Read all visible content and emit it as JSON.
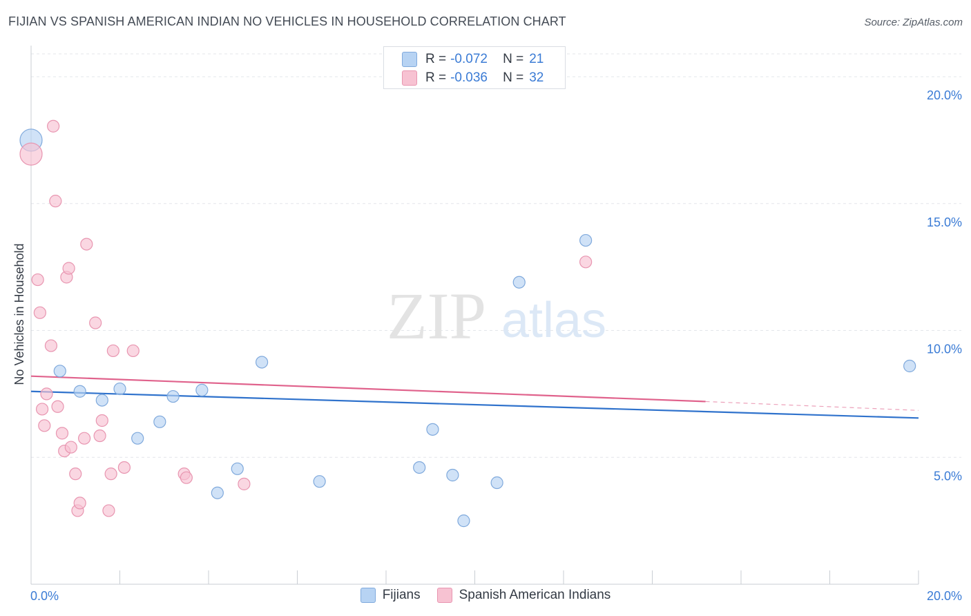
{
  "header": {
    "title": "FIJIAN VS SPANISH AMERICAN INDIAN NO VEHICLES IN HOUSEHOLD CORRELATION CHART",
    "source": "Source: ZipAtlas.com"
  },
  "watermark": {
    "zip": "ZIP",
    "atlas": "atlas"
  },
  "stats_legend": {
    "rows": [
      {
        "series": "Fijians",
        "r_label": "R =",
        "r_value": "-0.072",
        "n_label": "N =",
        "n_value": "21"
      },
      {
        "series": "Spanish American Indians",
        "r_label": "R =",
        "r_value": "-0.036",
        "n_label": "N =",
        "n_value": "32"
      }
    ]
  },
  "colors": {
    "fijians_fill": "#b7d3f3",
    "fijians_stroke": "#7fa9dc",
    "fijians_line": "#2f72cc",
    "sai_fill": "#f7c2d2",
    "sai_stroke": "#e895b0",
    "sai_line": "#e0628c",
    "axis_text": "#3a7bd5",
    "grid": "#e3e6ea"
  },
  "chart_data": {
    "type": "scatter",
    "title": "FIJIAN VS SPANISH AMERICAN INDIAN NO VEHICLES IN HOUSEHOLD CORRELATION CHART",
    "xlabel": "",
    "ylabel": "No Vehicles in Household",
    "xlim": [
      0,
      20
    ],
    "ylim": [
      0,
      20.9
    ],
    "x_tick_labels": [
      "0.0%",
      "20.0%"
    ],
    "y_ticks": [
      5,
      10,
      15,
      20
    ],
    "y_tick_labels": [
      "5.0%",
      "10.0%",
      "15.0%",
      "20.0%"
    ],
    "series": [
      {
        "name": "Fijians",
        "points": [
          {
            "x": 0.0,
            "y": 17.5,
            "big": true
          },
          {
            "x": 0.65,
            "y": 8.4
          },
          {
            "x": 1.1,
            "y": 7.6
          },
          {
            "x": 1.6,
            "y": 7.25
          },
          {
            "x": 2.0,
            "y": 7.7
          },
          {
            "x": 2.4,
            "y": 5.75
          },
          {
            "x": 2.9,
            "y": 6.4
          },
          {
            "x": 3.2,
            "y": 7.4
          },
          {
            "x": 3.85,
            "y": 7.65
          },
          {
            "x": 4.2,
            "y": 3.6
          },
          {
            "x": 4.65,
            "y": 4.55
          },
          {
            "x": 5.2,
            "y": 8.75
          },
          {
            "x": 6.5,
            "y": 4.05
          },
          {
            "x": 8.75,
            "y": 4.6
          },
          {
            "x": 9.05,
            "y": 6.1
          },
          {
            "x": 9.5,
            "y": 4.3
          },
          {
            "x": 9.75,
            "y": 2.5
          },
          {
            "x": 10.5,
            "y": 4.0
          },
          {
            "x": 11.0,
            "y": 11.9
          },
          {
            "x": 12.5,
            "y": 13.55
          },
          {
            "x": 19.8,
            "y": 8.6
          }
        ],
        "trend": {
          "x": [
            0,
            20
          ],
          "y": [
            7.6,
            6.55
          ]
        }
      },
      {
        "name": "Spanish American Indians",
        "points": [
          {
            "x": 0.0,
            "y": 16.95,
            "big": true
          },
          {
            "x": 0.15,
            "y": 12.0
          },
          {
            "x": 0.2,
            "y": 10.7
          },
          {
            "x": 0.25,
            "y": 6.9
          },
          {
            "x": 0.3,
            "y": 6.25
          },
          {
            "x": 0.35,
            "y": 7.5
          },
          {
            "x": 0.45,
            "y": 9.4
          },
          {
            "x": 0.5,
            "y": 18.05
          },
          {
            "x": 0.55,
            "y": 15.1
          },
          {
            "x": 0.6,
            "y": 7.0
          },
          {
            "x": 0.7,
            "y": 5.95
          },
          {
            "x": 0.75,
            "y": 5.25
          },
          {
            "x": 0.8,
            "y": 12.1
          },
          {
            "x": 0.85,
            "y": 12.45
          },
          {
            "x": 0.9,
            "y": 5.4
          },
          {
            "x": 1.0,
            "y": 4.35
          },
          {
            "x": 1.05,
            "y": 2.9
          },
          {
            "x": 1.1,
            "y": 3.2
          },
          {
            "x": 1.2,
            "y": 5.75
          },
          {
            "x": 1.25,
            "y": 13.4
          },
          {
            "x": 1.45,
            "y": 10.3
          },
          {
            "x": 1.55,
            "y": 5.85
          },
          {
            "x": 1.6,
            "y": 6.45
          },
          {
            "x": 1.75,
            "y": 2.9
          },
          {
            "x": 1.8,
            "y": 4.35
          },
          {
            "x": 1.85,
            "y": 9.2
          },
          {
            "x": 2.1,
            "y": 4.6
          },
          {
            "x": 2.3,
            "y": 9.2
          },
          {
            "x": 3.45,
            "y": 4.35
          },
          {
            "x": 3.5,
            "y": 4.2
          },
          {
            "x": 4.8,
            "y": 3.95
          },
          {
            "x": 12.5,
            "y": 12.7
          }
        ],
        "trend": {
          "x": [
            0,
            15.2
          ],
          "y": [
            8.2,
            7.2
          ]
        },
        "trend_dashed": {
          "x": [
            15.2,
            20
          ],
          "y": [
            7.2,
            6.85
          ]
        }
      }
    ],
    "legend": [
      "Fijians",
      "Spanish American Indians"
    ]
  }
}
